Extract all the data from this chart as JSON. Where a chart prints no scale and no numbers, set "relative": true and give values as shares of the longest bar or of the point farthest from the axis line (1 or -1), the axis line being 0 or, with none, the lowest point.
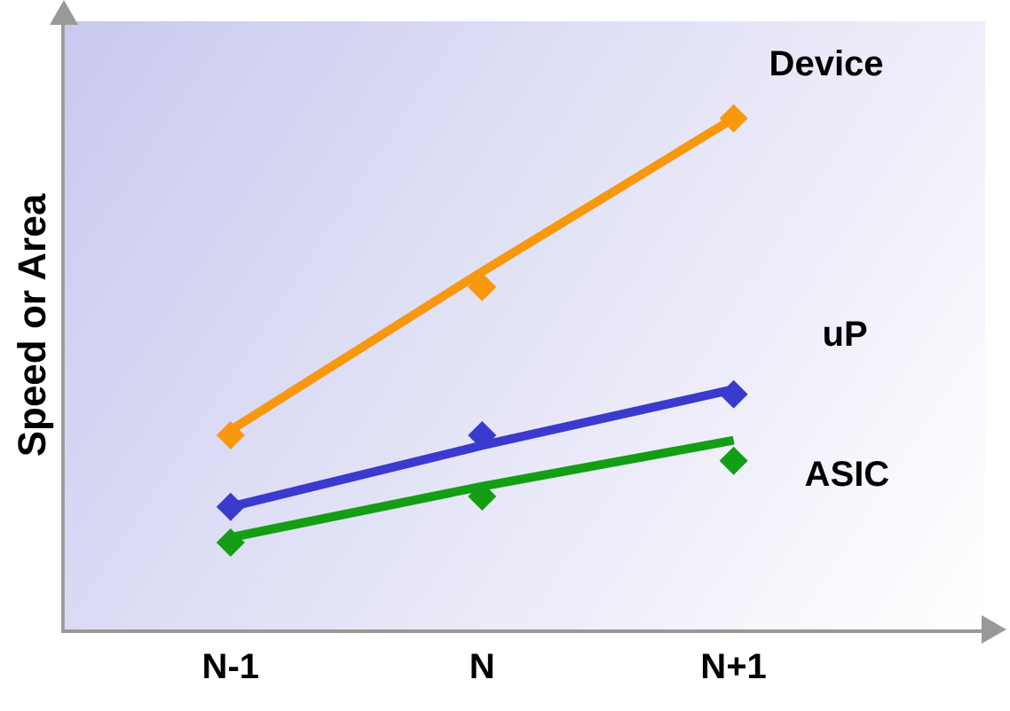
{
  "chart_data": {
    "type": "line",
    "ylabel": "Speed or Area",
    "relative": true,
    "categories": [
      "N-1",
      "N",
      "N+1"
    ],
    "grid": false,
    "legend": false,
    "tick_labels": "x",
    "series": [
      {
        "name": "Device",
        "color": "#f7980f",
        "marker": "none",
        "values": [
          0.39,
          0.7,
          1.0
        ]
      },
      {
        "name": "uP",
        "color": "#3a3acf",
        "marker": "none",
        "values": [
          0.24,
          0.36,
          0.47
        ]
      },
      {
        "name": "ASIC",
        "color": "#149e14",
        "marker": "none",
        "values": [
          0.18,
          0.28,
          0.37
        ]
      },
      {
        "type": "scatter",
        "color": "#f7980f",
        "marker": "diamond",
        "values": [
          0.38,
          0.67,
          1.0
        ]
      },
      {
        "type": "scatter",
        "color": "#3a3acf",
        "marker": "diamond",
        "values": [
          0.24,
          0.38,
          0.46
        ]
      },
      {
        "type": "scatter",
        "color": "#149e14",
        "marker": "diamond",
        "values": [
          0.17,
          0.26,
          0.33
        ]
      }
    ]
  }
}
